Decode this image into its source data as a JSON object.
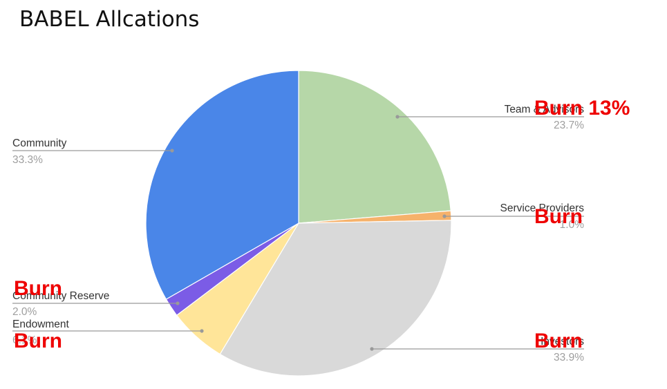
{
  "title": "BABEL Allcations",
  "chart_data": {
    "type": "pie",
    "title": "BABEL Allcations",
    "slices": [
      {
        "label": "Team & Advisors",
        "value": 23.7,
        "value_label": "23.7%",
        "color": "#b6d7a8"
      },
      {
        "label": "Service Providers",
        "value": 1.0,
        "value_label": "1.0%",
        "color": "#f6b26b"
      },
      {
        "label": "Investors",
        "value": 33.9,
        "value_label": "33.9%",
        "color": "#d9d9d9"
      },
      {
        "label": "Endowment",
        "value": 6.1,
        "value_label": "6.1%",
        "color": "#ffe599"
      },
      {
        "label": "Community Reserve",
        "value": 2.0,
        "value_label": "2.0%",
        "color": "#7b5ce6"
      },
      {
        "label": "Community",
        "value": 33.3,
        "value_label": "33.3%",
        "color": "#4a86e8"
      }
    ],
    "start_angle_deg": 0,
    "direction": "clockwise"
  },
  "annotations": [
    {
      "slice": "Team & Advisors",
      "text": "Burn 13%"
    },
    {
      "slice": "Service Providers",
      "text": "Burn"
    },
    {
      "slice": "Investors",
      "text": "Burn"
    },
    {
      "slice": "Community Reserve",
      "text": "Burn"
    },
    {
      "slice": "Endowment",
      "text": "Burn"
    }
  ],
  "colors": {
    "annotation": "#ee0000",
    "label_text": "#333333",
    "percent_text": "#9e9e9e",
    "leader_line": "#999999"
  }
}
